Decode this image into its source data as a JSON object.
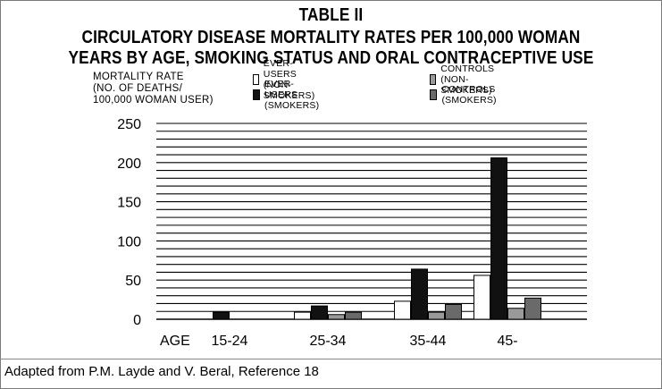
{
  "title_lines": [
    "TABLE II",
    "CIRCULATORY DISEASE MORTALITY RATES PER 100,000 WOMAN",
    "YEARS BY AGE, SMOKING STATUS AND ORAL CONTRACEPTIVE USE"
  ],
  "ylabel_lines": [
    "MORTALITY RATE",
    "(NO. OF DEATHS/",
    "100,000 WOMAN USER)"
  ],
  "legend": [
    {
      "label": "EVER-USERS (NON-SMOKERS)",
      "color": "#ffffff"
    },
    {
      "label": "EVER-USERS (SMOKERS)",
      "color": "#111111"
    },
    {
      "label": "CONTROLS (NON-SMOKERS)",
      "color": "#9a9a9a"
    },
    {
      "label": "CONTROLS (SMOKERS)",
      "color": "#6a6a6a"
    }
  ],
  "footer": "Adapted from P.M. Layde and V. Beral, Reference 18",
  "chart_data": {
    "type": "bar",
    "title": "CIRCULATORY DISEASE MORTALITY RATES PER 100,000 WOMAN YEARS BY AGE, SMOKING STATUS AND ORAL CONTRACEPTIVE USE",
    "xlabel": "AGE",
    "ylabel": "MORTALITY RATE (NO. OF DEATHS/ 100,000 WOMAN USER)",
    "categories": [
      "15-24",
      "25-34",
      "35-44",
      "45-"
    ],
    "series": [
      {
        "name": "EVER-USERS (NON-SMOKERS)",
        "color": "#ffffff",
        "values": [
          0,
          9,
          23,
          56
        ]
      },
      {
        "name": "EVER-USERS (SMOKERS)",
        "color": "#111111",
        "values": [
          9,
          17,
          64,
          206
        ]
      },
      {
        "name": "CONTROLS (NON-SMOKERS)",
        "color": "#9a9a9a",
        "values": [
          0,
          6,
          9,
          14
        ]
      },
      {
        "name": "CONTROLS (SMOKERS)",
        "color": "#6a6a6a",
        "values": [
          0,
          9,
          19,
          27
        ]
      }
    ],
    "ylim": [
      0,
      250
    ],
    "yticks": [
      0,
      50,
      100,
      150,
      200,
      250
    ],
    "grid": true,
    "legend_position": "top"
  }
}
